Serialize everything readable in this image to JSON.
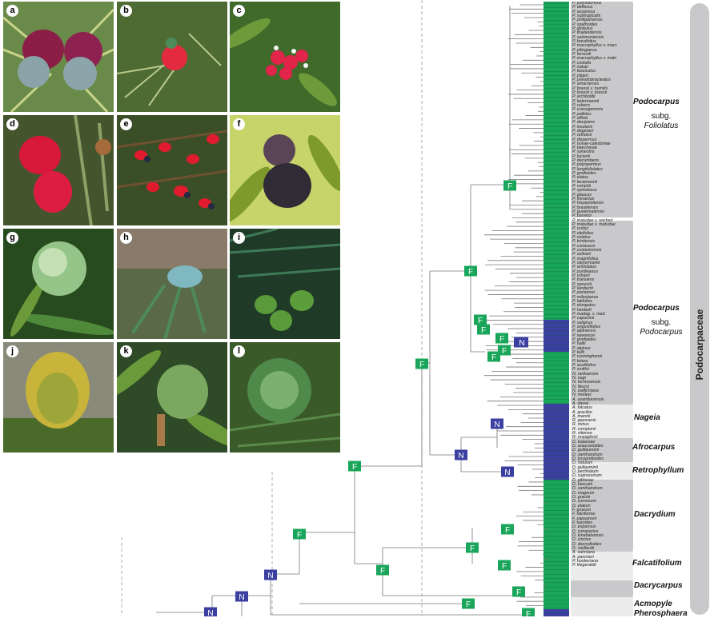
{
  "photos": [
    {
      "label": "a",
      "icon": "photo-podocarpus-red-receptacles-blue-seeds"
    },
    {
      "label": "b",
      "icon": "photo-red-receptacle-needle-foliage"
    },
    {
      "label": "c",
      "icon": "photo-red-cones-broad-leaves"
    },
    {
      "label": "d",
      "icon": "photo-red-fleshy-cones"
    },
    {
      "label": "e",
      "icon": "photo-red-cones-branches"
    },
    {
      "label": "f",
      "icon": "photo-dark-purple-seeds"
    },
    {
      "label": "g",
      "icon": "photo-green-seed-glaucous"
    },
    {
      "label": "h",
      "icon": "photo-blue-green-shoot"
    },
    {
      "label": "i",
      "icon": "photo-green-seeds-pinnate-leaves"
    },
    {
      "label": "j",
      "icon": "photo-yellow-green-cone"
    },
    {
      "label": "k",
      "icon": "photo-green-cone-broad-leaves"
    },
    {
      "label": "l",
      "icon": "photo-spiky-green-cone"
    }
  ],
  "colors": {
    "F": "#1aa65a",
    "N": "#3b3fa0",
    "block": "#c9c9cb",
    "strip_green": "#1aa65a",
    "strip_blue": "#3b3fa0"
  },
  "nodes": [
    {
      "label": "N"
    },
    {
      "label": "N"
    },
    {
      "label": "N"
    },
    {
      "label": "F"
    },
    {
      "label": "F"
    },
    {
      "label": "F"
    },
    {
      "label": "F"
    },
    {
      "label": "F"
    },
    {
      "label": "F"
    },
    {
      "label": "F"
    },
    {
      "label": "F"
    },
    {
      "label": "N"
    },
    {
      "label": "F"
    },
    {
      "label": "F"
    },
    {
      "label": "N"
    },
    {
      "label": "N"
    },
    {
      "label": "N"
    },
    {
      "label": "F"
    },
    {
      "label": "F"
    },
    {
      "label": "F"
    },
    {
      "label": "F"
    },
    {
      "label": "F"
    },
    {
      "label": "F"
    },
    {
      "label": "F"
    },
    {
      "label": "N"
    }
  ],
  "clades": {
    "podocarpus_foliolatus": {
      "genus": "Podocarpus",
      "sub1": "subg.",
      "sub2": "Foliolatus"
    },
    "podocarpus_podocarpus": {
      "genus": "Podocarpus",
      "sub1": "subg.",
      "sub2": "Podocarpus"
    },
    "nageia": "Nageia",
    "afrocarpus": "Afrocarpus",
    "retrophyllum": "Retrophyllum",
    "dacrydium": "Dacrydium",
    "falcatifolium": "Falcatifolium",
    "dacrycarpus": "Dacrycarpus",
    "acmopyle": "Acmopyle",
    "pherosphaera": "Pherosphaera",
    "family": "Podocarpaceae"
  },
  "taxa": [
    "P. polystachyus",
    "P. deflexus",
    "P. assamica",
    "P. subtropicalis",
    "P. philippinensis",
    "P. spathoides",
    "P. globulus",
    "P. thailandensis",
    "P. salomoniensis",
    "P. brevifolius",
    "P. macrophyllus v. macr.",
    "P. pilingianus",
    "P. forrestii",
    "P. macrophyllus v. maki",
    "P. costalis",
    "P. nakaii",
    "P. fasciculus",
    "P. pilgeri",
    "P. pseudobracteatus",
    "P. amarnensis",
    "P. brassii v. humilis",
    "P. brassii v. brassii",
    "P. archboldii",
    "P. ledermannii",
    "P. rubens",
    "P. crassigemmis",
    "P. pallidus",
    "P. affinis",
    "P. decipiens",
    "P. insularis",
    "P. degeneri",
    "P. rotholsii",
    "P. dispermus",
    "P. novae-caledoniae",
    "P. beecherae",
    "P. sylvestris",
    "P. lucienii",
    "P. decumbens",
    "P. polyspermus",
    "P. longifoliolatus",
    "P. gnidioides",
    "P. elatus",
    "P. levamannii",
    "P. rumphii",
    "P. spinulosus",
    "P. glaucus",
    "P. lmnantus",
    "P. hispaniolensis",
    "P. brasiliensis",
    "P. guatemalensis",
    "P. barretoi",
    "P. matudae v. reicheri",
    "P. matudae v. matudae",
    "P. rusbyi",
    "P. oleifolius",
    "P. celatus",
    "P. trinitensis",
    "P. coriaceus",
    "P. costaricensis",
    "P. sellowii",
    "P. magnifolius",
    "P. steyermarkii",
    "P. aristulatus",
    "P. purdieanus",
    "P. urbanii",
    "P. transiens",
    "P. spruceii",
    "P. lambertii",
    "P. parlatorei",
    "P. milanjianus",
    "P. latifolius",
    "P. elongatus",
    "P. henkelii",
    "P. madag. v. mad.",
    "P. capuronii",
    "P. salignus",
    "P. angustifolius",
    "P. alpinensis",
    "P. lawrencei",
    "P. gnidioides",
    "P. hallii",
    "P. alpinus",
    "P. tullii",
    "P. cunninghamii",
    "P. totara",
    "P. acutifolius",
    "P. smithii",
    "N. rankoensis",
    "N. nagi",
    "N. formosensis",
    "N. fleuryi",
    "N. wallichiana",
    "N. motleyi",
    "A. usambarensis",
    "A. dawei",
    "A. falcatus",
    "A. gracilior",
    "A. mannii",
    "R. gaussenii",
    "R. minus",
    "R. comptonii",
    "R. vitiense",
    "R. rospigliosii",
    "D. balansae",
    "D. araucarioides",
    "D. guillauminii",
    "D. xanthandrum",
    "D. lycopodioides",
    "D. nidulum",
    "D. gullauminii",
    "D. pectinatum",
    "D. cupressinum",
    "D. gibbsiae",
    "D. beccarii",
    "D. xanthandrum",
    "D. magnum",
    "D. gracile",
    "D. cornosum",
    "D. elatum",
    "F. gruezoi",
    "F. falciforme",
    "F. papuanum",
    "F. taxoides",
    "D. expansus",
    "D. compactus",
    "D. kinabaluensis",
    "D. cinctus",
    "D. dacrydioides",
    "D. vieillardii",
    "A. sahniana",
    "A. pancheri",
    "P. hookeriana",
    "P. fitzgeraldii"
  ]
}
